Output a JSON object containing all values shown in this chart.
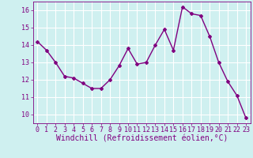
{
  "x": [
    0,
    1,
    2,
    3,
    4,
    5,
    6,
    7,
    8,
    9,
    10,
    11,
    12,
    13,
    14,
    15,
    16,
    17,
    18,
    19,
    20,
    21,
    22,
    23
  ],
  "y": [
    14.2,
    13.7,
    13.0,
    12.2,
    12.1,
    11.8,
    11.5,
    11.5,
    12.0,
    12.8,
    13.8,
    12.9,
    13.0,
    14.0,
    14.9,
    13.7,
    16.2,
    15.8,
    15.7,
    14.5,
    13.0,
    11.9,
    11.1,
    9.8
  ],
  "line_color": "#800080",
  "marker": "D",
  "marker_size": 2,
  "linewidth": 1.0,
  "xlabel": "Windchill (Refroidissement éolien,°C)",
  "xlabel_fontsize": 7,
  "background_color": "#cff0f0",
  "grid_color": "#ffffff",
  "ylim": [
    9.5,
    16.5
  ],
  "xlim": [
    -0.5,
    23.5
  ],
  "yticks": [
    10,
    11,
    12,
    13,
    14,
    15,
    16
  ],
  "xticks": [
    0,
    1,
    2,
    3,
    4,
    5,
    6,
    7,
    8,
    9,
    10,
    11,
    12,
    13,
    14,
    15,
    16,
    17,
    18,
    19,
    20,
    21,
    22,
    23
  ],
  "tick_fontsize": 6,
  "tick_color": "#800080"
}
